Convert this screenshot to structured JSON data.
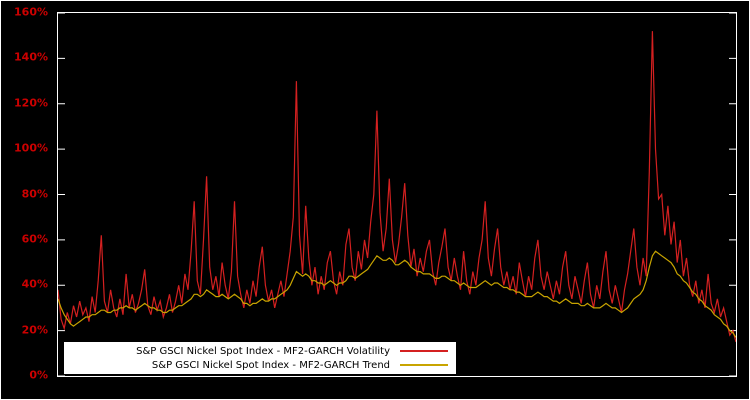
{
  "window": {
    "background": "#000000",
    "frame_color": "#ffffff"
  },
  "chart": {
    "title": "",
    "xlabel": "",
    "ylabel": "",
    "y_ticks": [
      "0%",
      "20%",
      "40%",
      "60%",
      "80%",
      "100%",
      "120%",
      "140%",
      "160%"
    ],
    "axis_label_color": "#cc0000",
    "plot_border_color": "#ffffff",
    "tick_color": "#ffffff"
  },
  "legend": {
    "background": "#ffffff",
    "items": [
      {
        "label": "S&P GSCI Nickel Spot Index - MF2-GARCH Volatility",
        "color": "#d42020"
      },
      {
        "label": "S&P GSCI Nickel Spot Index - MF2-GARCH Trend",
        "color": "#c8a400"
      }
    ]
  },
  "chart_data": {
    "type": "line",
    "title": "",
    "xlabel": "",
    "ylabel": "",
    "ylim": [
      0,
      160
    ],
    "y_unit": "%",
    "grid": false,
    "legend_position": "bottom-left-inside",
    "series": [
      {
        "name": "S&P GSCI Nickel Spot Index - MF2-GARCH Volatility",
        "color": "#d42020",
        "values": [
          38,
          25,
          21,
          28,
          23,
          31,
          26,
          33,
          27,
          30,
          24,
          35,
          28,
          42,
          62,
          33,
          28,
          38,
          30,
          26,
          34,
          27,
          45,
          30,
          36,
          28,
          32,
          38,
          47,
          31,
          27,
          35,
          29,
          33,
          26,
          30,
          36,
          28,
          33,
          40,
          32,
          45,
          38,
          55,
          77,
          42,
          36,
          60,
          88,
          48,
          38,
          44,
          35,
          50,
          40,
          34,
          46,
          77,
          44,
          36,
          30,
          38,
          32,
          42,
          35,
          48,
          57,
          40,
          33,
          38,
          30,
          36,
          42,
          35,
          45,
          55,
          70,
          130,
          62,
          45,
          75,
          52,
          40,
          48,
          36,
          44,
          38,
          50,
          55,
          42,
          36,
          46,
          40,
          58,
          65,
          48,
          42,
          55,
          47,
          60,
          52,
          68,
          80,
          117,
          72,
          55,
          65,
          87,
          60,
          50,
          58,
          70,
          85,
          62,
          48,
          56,
          44,
          52,
          46,
          55,
          60,
          46,
          40,
          50,
          57,
          65,
          48,
          42,
          52,
          44,
          38,
          55,
          42,
          36,
          46,
          40,
          52,
          60,
          77,
          52,
          44,
          56,
          65,
          48,
          40,
          46,
          38,
          44,
          36,
          50,
          42,
          35,
          44,
          38,
          52,
          60,
          44,
          38,
          46,
          40,
          34,
          42,
          36,
          48,
          55,
          40,
          34,
          44,
          38,
          32,
          42,
          50,
          36,
          30,
          40,
          34,
          46,
          55,
          38,
          32,
          40,
          34,
          28,
          38,
          45,
          55,
          65,
          48,
          40,
          52,
          44,
          90,
          152,
          100,
          78,
          80,
          62,
          75,
          58,
          68,
          50,
          60,
          44,
          52,
          40,
          35,
          42,
          32,
          38,
          30,
          45,
          32,
          28,
          34,
          26,
          30,
          24,
          18,
          20,
          15
        ]
      },
      {
        "name": "S&P GSCI Nickel Spot Index - MF2-GARCH Trend",
        "color": "#c8a400",
        "values": [
          34,
          30,
          27,
          25,
          23,
          22,
          23,
          24,
          25,
          26,
          26,
          27,
          27,
          28,
          29,
          29,
          28,
          28,
          29,
          29,
          30,
          30,
          31,
          30,
          30,
          29,
          30,
          31,
          32,
          31,
          30,
          30,
          29,
          29,
          28,
          28,
          29,
          29,
          30,
          31,
          31,
          32,
          33,
          34,
          36,
          36,
          35,
          36,
          38,
          37,
          36,
          35,
          35,
          36,
          35,
          34,
          35,
          36,
          35,
          34,
          32,
          32,
          31,
          32,
          32,
          33,
          34,
          33,
          33,
          34,
          34,
          35,
          36,
          37,
          38,
          40,
          43,
          46,
          45,
          44,
          45,
          44,
          42,
          42,
          41,
          41,
          40,
          41,
          42,
          41,
          40,
          41,
          41,
          42,
          44,
          44,
          43,
          44,
          45,
          46,
          47,
          49,
          51,
          53,
          52,
          51,
          51,
          52,
          51,
          49,
          49,
          50,
          51,
          50,
          48,
          47,
          46,
          46,
          45,
          45,
          45,
          44,
          43,
          43,
          44,
          44,
          43,
          42,
          42,
          41,
          40,
          41,
          40,
          39,
          39,
          39,
          40,
          41,
          42,
          41,
          40,
          41,
          41,
          40,
          39,
          39,
          38,
          38,
          37,
          37,
          36,
          35,
          35,
          35,
          36,
          37,
          36,
          35,
          35,
          34,
          33,
          33,
          32,
          33,
          34,
          33,
          32,
          32,
          32,
          31,
          31,
          32,
          31,
          30,
          30,
          30,
          31,
          32,
          31,
          30,
          30,
          29,
          28,
          29,
          30,
          32,
          34,
          35,
          36,
          38,
          42,
          48,
          53,
          55,
          54,
          53,
          52,
          51,
          50,
          48,
          45,
          44,
          42,
          41,
          39,
          37,
          36,
          34,
          33,
          31,
          30,
          29,
          27,
          26,
          25,
          23,
          22,
          20,
          19,
          17
        ]
      }
    ]
  }
}
